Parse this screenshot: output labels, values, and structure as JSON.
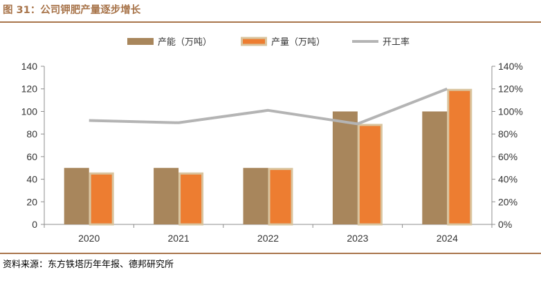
{
  "figure": {
    "title": "图 31：公司钾肥产量逐步增长",
    "source": "资料来源：东方铁塔历年年报、德邦研究所"
  },
  "chart_data": {
    "type": "bar",
    "categories": [
      "2020",
      "2021",
      "2022",
      "2023",
      "2024"
    ],
    "series": [
      {
        "name": "产能（万吨）",
        "type": "bar",
        "axis": "left",
        "color": "#a8865c",
        "values": [
          50,
          50,
          50,
          100,
          100
        ]
      },
      {
        "name": "产量（万吨）",
        "type": "bar",
        "axis": "left",
        "color": "#ed7d31",
        "border_color": "#d9c49e",
        "values": [
          46,
          46,
          50,
          89,
          120
        ]
      },
      {
        "name": "开工率",
        "type": "line",
        "axis": "right",
        "color": "#b4b4b4",
        "values": [
          0.92,
          0.9,
          1.01,
          0.89,
          1.2
        ]
      }
    ],
    "y_left": {
      "min": 0,
      "max": 140,
      "ticks": [
        "0",
        "20",
        "40",
        "60",
        "80",
        "100",
        "120",
        "140"
      ]
    },
    "y_right": {
      "min": 0,
      "max": 1.4,
      "ticks": [
        "0%",
        "20%",
        "40%",
        "60%",
        "80%",
        "100%",
        "120%",
        "140%"
      ]
    },
    "grid": false,
    "legend_position": "top"
  }
}
